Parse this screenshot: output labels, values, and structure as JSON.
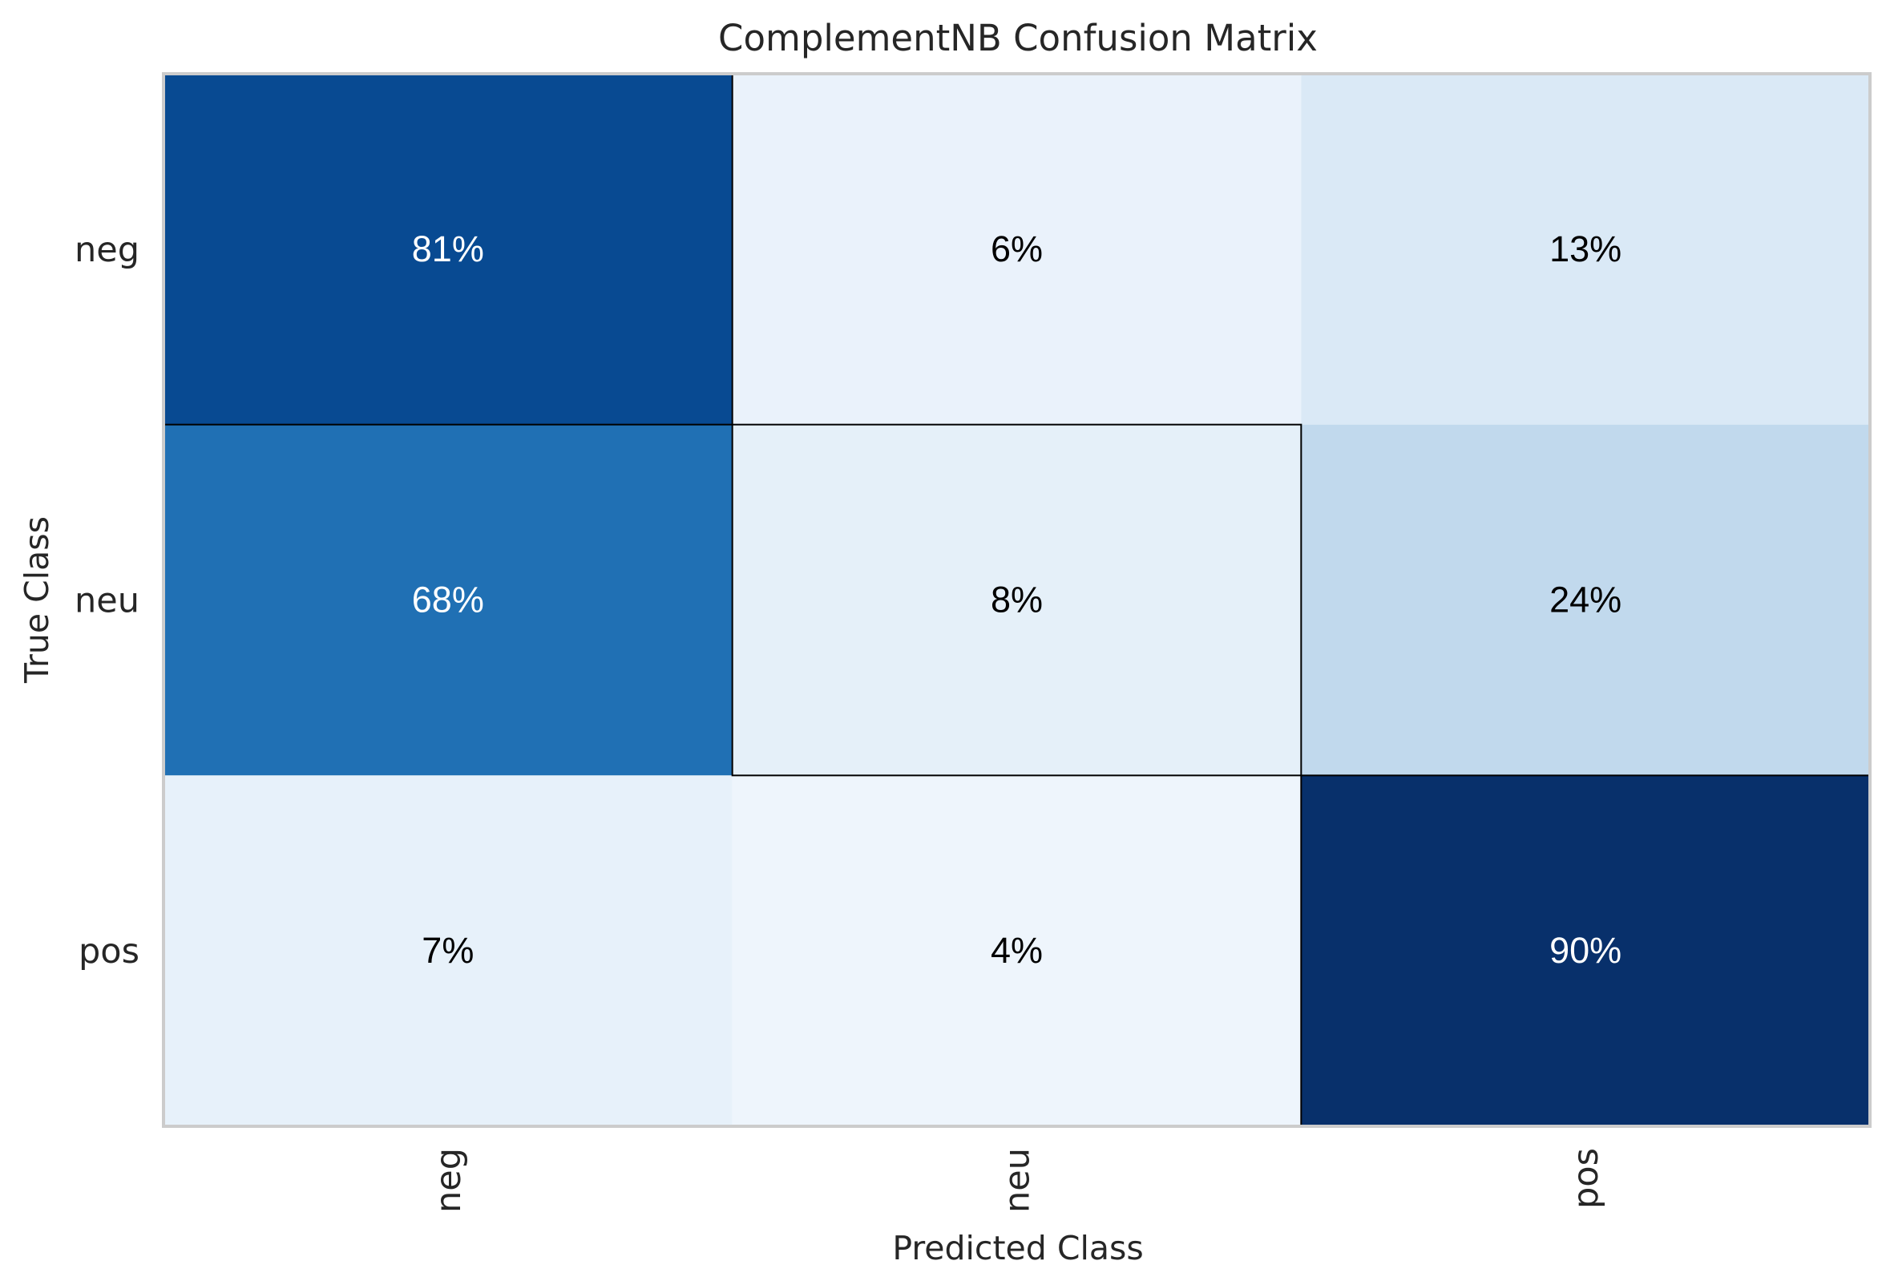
{
  "chart_data": {
    "type": "heatmap",
    "title": "ComplementNB Confusion Matrix",
    "xlabel": "Predicted Class",
    "ylabel": "True Class",
    "x_categories": [
      "neg",
      "neu",
      "pos"
    ],
    "y_categories": [
      "neg",
      "neu",
      "pos"
    ],
    "values": [
      [
        81,
        6,
        13
      ],
      [
        68,
        8,
        24
      ],
      [
        7,
        4,
        90
      ]
    ],
    "value_suffix": "%",
    "colormap": "Blues",
    "diagonal_outlined": true,
    "grid": false
  },
  "colors": {
    "text_dark": "#000000",
    "text_light": "#ffffff",
    "spine": "#cccccc",
    "outline": "#000000"
  }
}
